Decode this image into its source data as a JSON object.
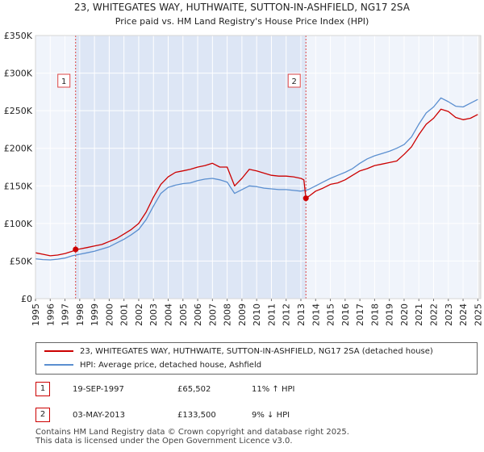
{
  "chart_data": {
    "type": "line",
    "title": "23, WHITEGATES WAY, HUTHWAITE, SUTTON-IN-ASHFIELD, NG17 2SA",
    "subtitle": "Price paid vs. HM Land Registry's House Price Index (HPI)",
    "xlim": [
      1995,
      2025.2
    ],
    "ylim": [
      0,
      350000
    ],
    "yticks": [
      0,
      50000,
      100000,
      150000,
      200000,
      250000,
      300000,
      350000
    ],
    "ytick_labels": [
      "£0",
      "£50K",
      "£100K",
      "£150K",
      "£200K",
      "£250K",
      "£300K",
      "£350K"
    ],
    "xticks": [
      1995,
      1996,
      1997,
      1998,
      1999,
      2000,
      2001,
      2002,
      2003,
      2004,
      2005,
      2006,
      2007,
      2008,
      2009,
      2010,
      2011,
      2012,
      2013,
      2014,
      2015,
      2016,
      2017,
      2018,
      2019,
      2020,
      2021,
      2022,
      2023,
      2024,
      2025
    ],
    "xtick_labels": [
      "1995",
      "1996",
      "1997",
      "1998",
      "1999",
      "2000",
      "2001",
      "2002",
      "2003",
      "2004",
      "2005",
      "2006",
      "2007",
      "2008",
      "2009",
      "2010",
      "2011",
      "2012",
      "2013",
      "2014",
      "2015",
      "2016",
      "2017",
      "2018",
      "2019",
      "2020",
      "2021",
      "2022",
      "2023",
      "2024",
      "2025"
    ],
    "colors": {
      "property": "#cc0000",
      "hpi": "#5b8fd0",
      "shade": "#dde6f5",
      "vline": "#dd4444"
    },
    "series": [
      {
        "name": "23, WHITEGATES WAY, HUTHWAITE, SUTTON-IN-ASHFIELD, NG17 2SA (detached house)",
        "key": "property",
        "x": [
          1995.0,
          1995.5,
          1996.0,
          1996.5,
          1997.0,
          1997.5,
          1997.72,
          1998.0,
          1998.5,
          1999.0,
          1999.5,
          2000.0,
          2000.5,
          2001.0,
          2001.5,
          2002.0,
          2002.5,
          2003.0,
          2003.5,
          2004.0,
          2004.5,
          2005.0,
          2005.5,
          2006.0,
          2006.5,
          2007.0,
          2007.5,
          2008.0,
          2008.5,
          2009.0,
          2009.5,
          2010.0,
          2010.5,
          2011.0,
          2011.5,
          2012.0,
          2012.5,
          2013.0,
          2013.2,
          2013.34,
          2013.6,
          2014.0,
          2014.5,
          2015.0,
          2015.5,
          2016.0,
          2016.5,
          2017.0,
          2017.5,
          2018.0,
          2018.5,
          2019.0,
          2019.5,
          2020.0,
          2020.5,
          2021.0,
          2021.5,
          2022.0,
          2022.5,
          2023.0,
          2023.5,
          2024.0,
          2024.5,
          2025.0
        ],
        "y": [
          61000,
          59000,
          57000,
          58000,
          60000,
          63000,
          65502,
          66000,
          68000,
          70000,
          72000,
          76000,
          80000,
          86000,
          92000,
          100000,
          115000,
          135000,
          152000,
          162000,
          168000,
          170000,
          172000,
          175000,
          177000,
          180000,
          175000,
          175000,
          150000,
          160000,
          172000,
          170000,
          167000,
          164000,
          163000,
          163000,
          162000,
          160000,
          158000,
          133500,
          137000,
          143000,
          147000,
          152000,
          154000,
          158000,
          164000,
          170000,
          173000,
          177000,
          179000,
          181000,
          183000,
          192000,
          202000,
          218000,
          232000,
          240000,
          252000,
          249000,
          241000,
          238000,
          240000,
          245000
        ]
      },
      {
        "name": "HPI: Average price, detached house, Ashfield",
        "key": "hpi",
        "x": [
          1995.0,
          1995.5,
          1996.0,
          1996.5,
          1997.0,
          1997.5,
          1998.0,
          1998.5,
          1999.0,
          1999.5,
          2000.0,
          2000.5,
          2001.0,
          2001.5,
          2002.0,
          2002.5,
          2003.0,
          2003.5,
          2004.0,
          2004.5,
          2005.0,
          2005.5,
          2006.0,
          2006.5,
          2007.0,
          2007.5,
          2008.0,
          2008.5,
          2009.0,
          2009.5,
          2010.0,
          2010.5,
          2011.0,
          2011.5,
          2012.0,
          2012.5,
          2013.0,
          2013.5,
          2014.0,
          2014.5,
          2015.0,
          2015.5,
          2016.0,
          2016.5,
          2017.0,
          2017.5,
          2018.0,
          2018.5,
          2019.0,
          2019.5,
          2020.0,
          2020.5,
          2021.0,
          2021.5,
          2022.0,
          2022.5,
          2023.0,
          2023.5,
          2024.0,
          2024.5,
          2025.0
        ],
        "y": [
          53000,
          52000,
          51500,
          52500,
          54000,
          57000,
          59000,
          61000,
          63000,
          66000,
          69000,
          74000,
          79000,
          85000,
          92000,
          105000,
          123000,
          140000,
          148000,
          151000,
          153000,
          154000,
          157000,
          159000,
          160000,
          158000,
          155000,
          140000,
          145000,
          150000,
          149000,
          147000,
          146000,
          145000,
          145000,
          144000,
          143000,
          145000,
          150000,
          155000,
          160000,
          164000,
          168000,
          173000,
          180000,
          186000,
          190000,
          193000,
          196000,
          200000,
          205000,
          215000,
          232000,
          247000,
          255000,
          267000,
          262000,
          256000,
          255000,
          260000,
          265000
        ]
      }
    ],
    "transactions": [
      {
        "label": "1",
        "x": 1997.72,
        "y": 65502
      },
      {
        "label": "2",
        "x": 2013.34,
        "y": 133500
      }
    ]
  },
  "legend": {
    "property": "23, WHITEGATES WAY, HUTHWAITE, SUTTON-IN-ASHFIELD, NG17 2SA (detached house)",
    "hpi": "HPI: Average price, detached house, Ashfield"
  },
  "transactions_table": [
    {
      "num": "1",
      "date": "19-SEP-1997",
      "price": "£65,502",
      "hpi": "11% ↑ HPI"
    },
    {
      "num": "2",
      "date": "03-MAY-2013",
      "price": "£133,500",
      "hpi": "9% ↓ HPI"
    }
  ],
  "footer": {
    "line1": "Contains HM Land Registry data © Crown copyright and database right 2025.",
    "line2": "This data is licensed under the Open Government Licence v3.0."
  }
}
